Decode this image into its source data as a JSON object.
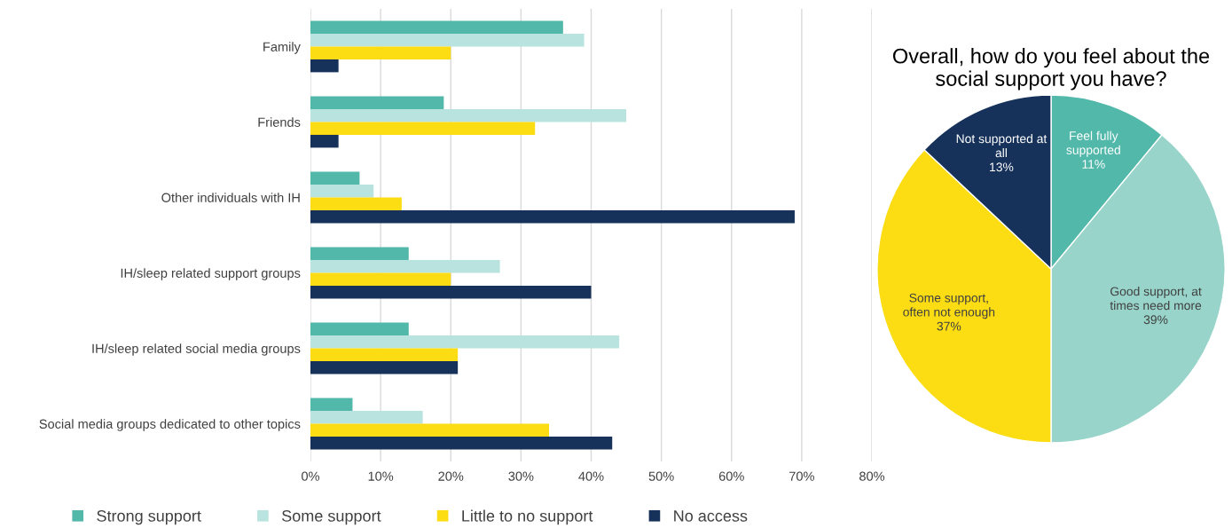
{
  "chart_data": [
    {
      "type": "bar",
      "orientation": "horizontal",
      "categories": [
        "Family",
        "Friends",
        "Other individuals with IH",
        "IH/sleep related support groups",
        "IH/sleep related social media groups",
        "Social media groups dedicated to other topics"
      ],
      "series": [
        {
          "name": "Strong support",
          "color": "#52b8aa",
          "values": [
            36,
            19,
            7,
            14,
            14,
            6
          ]
        },
        {
          "name": "Some support",
          "color": "#b9e3de",
          "values": [
            39,
            45,
            9,
            27,
            44,
            16
          ]
        },
        {
          "name": "Little to no support",
          "color": "#fcdc12",
          "values": [
            20,
            32,
            13,
            20,
            21,
            34
          ]
        },
        {
          "name": "No access",
          "color": "#17325a",
          "values": [
            4,
            4,
            69,
            40,
            21,
            43
          ]
        }
      ],
      "xlim": [
        0,
        80
      ],
      "xticks": [
        {
          "value": 0,
          "label": "0%"
        },
        {
          "value": 10,
          "label": "10%"
        },
        {
          "value": 20,
          "label": "20%"
        },
        {
          "value": 30,
          "label": "30%"
        },
        {
          "value": 40,
          "label": "40%"
        },
        {
          "value": 50,
          "label": "50%"
        },
        {
          "value": 60,
          "label": "60%"
        },
        {
          "value": 70,
          "label": "70%"
        },
        {
          "value": 80,
          "label": "80%"
        }
      ],
      "grid": "x",
      "legend": "bottom"
    },
    {
      "type": "pie",
      "title": "Overall, how do you feel about the\nsocial support you have?",
      "categories": [
        "Feel fully\nsupported",
        "Good support, at\ntimes need more",
        "Some support,\noften not enough",
        "Not supported at\nall"
      ],
      "values": [
        11,
        39,
        37,
        13
      ],
      "colors": [
        "#52b8aa",
        "#98d4ca",
        "#fcdc12",
        "#17325a"
      ],
      "value_labels": [
        "11%",
        "39%",
        "37%",
        "13%"
      ]
    }
  ]
}
